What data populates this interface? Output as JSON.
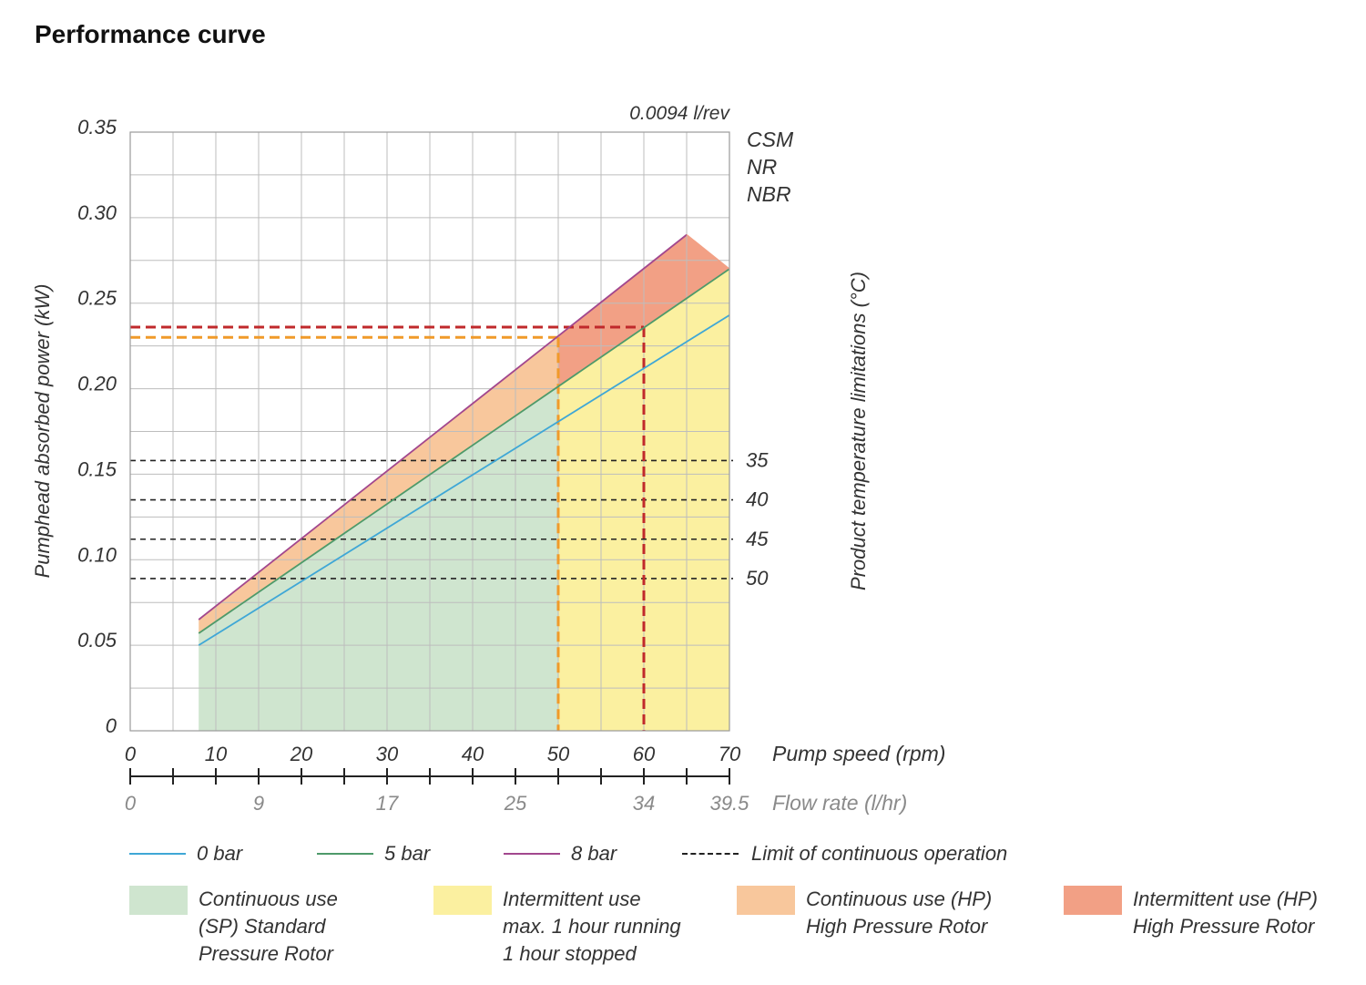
{
  "page": {
    "title": "Performance curve"
  },
  "colors": {
    "bar0": "#3fa7d6",
    "bar5": "#4e9a6a",
    "bar8": "#a2478e",
    "cont_sp": "#cfe5cf",
    "intermittent": "#fbf0a0",
    "cont_hp": "#f8c79c",
    "interm_hp": "#f2a085",
    "limit_hp": "#c0292b",
    "limit_sp": "#f09a2a",
    "grid": "#bdbdbd",
    "axis": "#555555"
  },
  "chart_data": {
    "type": "line",
    "title": "Performance curve",
    "xlabel": "Pump speed (rpm)",
    "ylabel": "Pumphead absorbed power (kW)",
    "y2label": "Product temperature limitations (°C)",
    "xlim": [
      0,
      70
    ],
    "ylim": [
      0,
      0.35
    ],
    "x_ticks": [
      "0",
      "10",
      "20",
      "30",
      "40",
      "50",
      "60",
      "70"
    ],
    "y_ticks": [
      "0",
      "0.05",
      "0.10",
      "0.15",
      "0.20",
      "0.25",
      "0.30",
      "0.35"
    ],
    "flow_axis": {
      "label": "Flow rate (l/hr)",
      "ticks": [
        {
          "label": "0",
          "rpm": 0
        },
        {
          "label": "9",
          "rpm": 15
        },
        {
          "label": "17",
          "rpm": 30
        },
        {
          "label": "25",
          "rpm": 45
        },
        {
          "label": "34",
          "rpm": 60
        },
        {
          "label": "39.5",
          "rpm": 70
        }
      ]
    },
    "displacement_label": "0.0094 l/rev",
    "materials": [
      "CSM",
      "NR",
      "NBR"
    ],
    "series": [
      {
        "name": "0 bar",
        "x": [
          8,
          70
        ],
        "y": [
          0.05,
          0.243
        ]
      },
      {
        "name": "5 bar",
        "x": [
          8,
          70
        ],
        "y": [
          0.057,
          0.27
        ]
      },
      {
        "name": "8 bar",
        "x": [
          8,
          65
        ],
        "y": [
          0.065,
          0.29
        ]
      }
    ],
    "hp_limit_line": {
      "x": [
        65,
        70
      ],
      "y": [
        0.29,
        0.27
      ]
    },
    "regions": {
      "continuous_sp_max_rpm": 50,
      "intermittent_max_rpm": 70,
      "hp_continuous_max_rpm": 50,
      "hp_intermittent_max_rpm": 70
    },
    "limit_lines": {
      "hp_power_kw": 0.236,
      "hp_speed_rpm": 60,
      "sp_power_kw": 0.23,
      "sp_speed_rpm": 50
    },
    "temperature_limits": [
      {
        "label": "35",
        "power": 0.158
      },
      {
        "label": "40",
        "power": 0.135
      },
      {
        "label": "45",
        "power": 0.112
      },
      {
        "label": "50",
        "power": 0.089
      }
    ],
    "legend": {
      "lines": [
        "0 bar",
        "5 bar",
        "8 bar",
        "Limit of continuous operation"
      ],
      "areas": [
        [
          "Continuous use",
          "(SP) Standard",
          "Pressure Rotor"
        ],
        [
          "Intermittent use",
          "max. 1 hour running",
          "1 hour stopped"
        ],
        [
          "Continuous use (HP)",
          "High Pressure Rotor"
        ],
        [
          "Intermittent use (HP)",
          "High Pressure Rotor"
        ]
      ]
    }
  }
}
